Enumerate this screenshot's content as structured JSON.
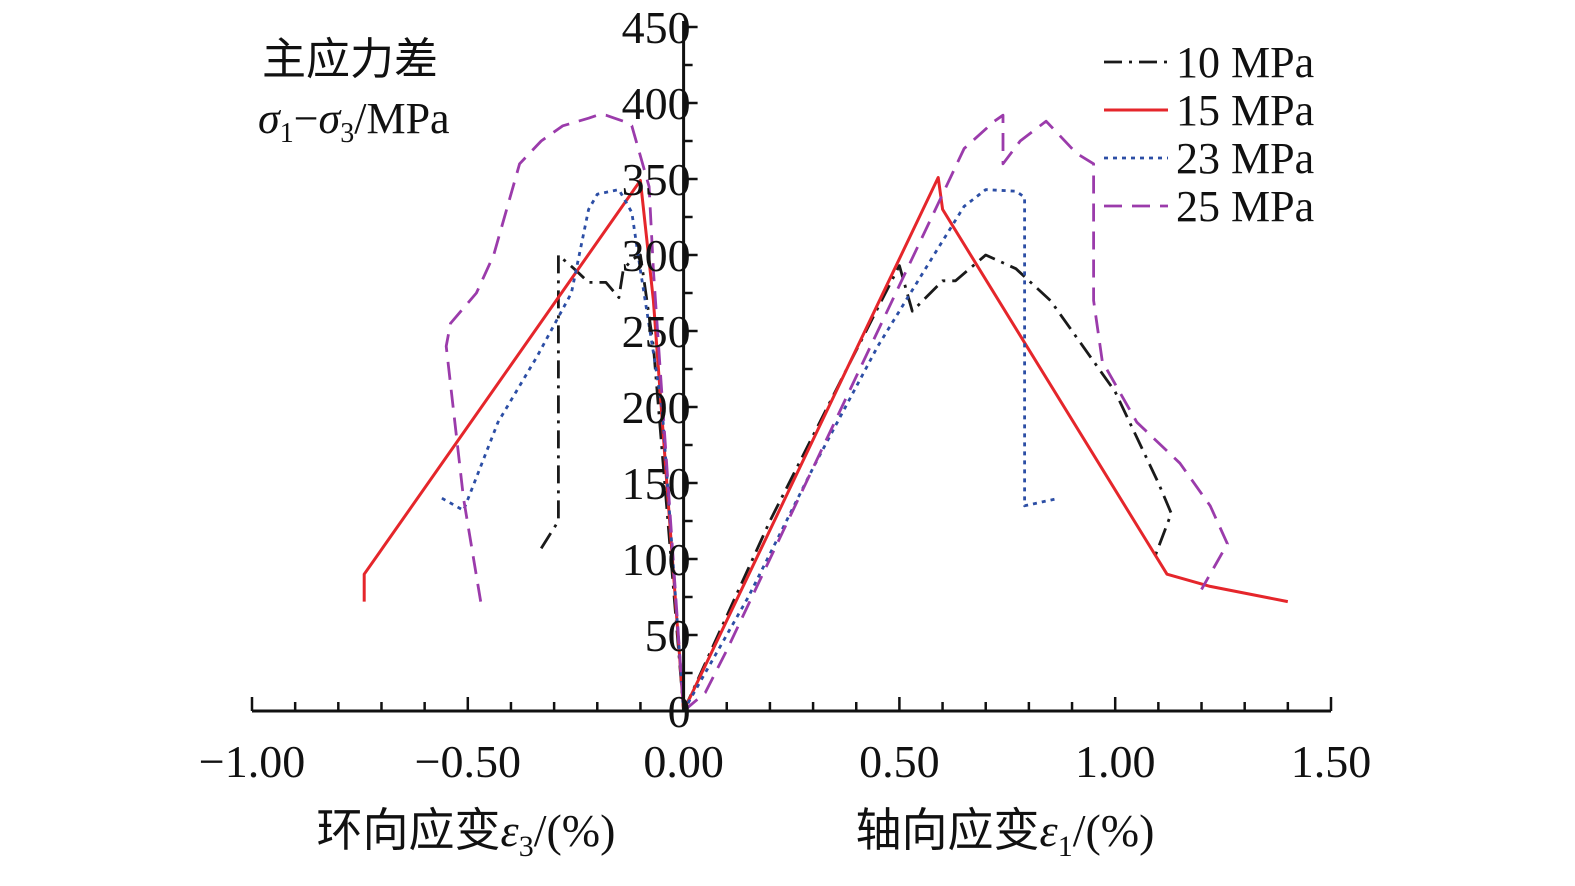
{
  "chart_data": {
    "type": "line",
    "y_title_line1": "主应力差",
    "y_title_sigma1": "σ",
    "y_title_sub1": "1",
    "y_title_minus": "−",
    "y_title_sigma3": "σ",
    "y_title_sub3": "3",
    "y_title_unit": "/MPa",
    "x_title_left_text": "环向应变",
    "x_title_left_symbol": "ε",
    "x_title_left_sub": "3",
    "x_title_left_unit": "/(%)",
    "x_title_right_text": "轴向应变",
    "x_title_right_symbol": "ε",
    "x_title_right_sub": "1",
    "x_title_right_unit": "/(%)",
    "xlim": [
      -1.0,
      1.5
    ],
    "ylim": [
      0,
      450
    ],
    "x_ticks": [
      "−1.00",
      "−0.50",
      "0.00",
      "0.50",
      "1.00",
      "1.50"
    ],
    "y_ticks": [
      "0",
      "50",
      "100",
      "150",
      "200",
      "250",
      "300",
      "350",
      "400",
      "450"
    ],
    "legend_position": "top-right",
    "series": [
      {
        "name": "10 MPa",
        "color": "#1a1a1a",
        "dash": "dashdot",
        "lateral": [
          [
            -0.33,
            107
          ],
          [
            -0.29,
            125
          ],
          [
            -0.29,
            130
          ],
          [
            -0.29,
            300
          ],
          [
            -0.25,
            290
          ],
          [
            -0.22,
            282
          ],
          [
            -0.18,
            282
          ],
          [
            -0.15,
            272
          ],
          [
            -0.14,
            290
          ],
          [
            -0.12,
            297
          ],
          [
            -0.1,
            300
          ],
          [
            -0.07,
            240
          ],
          [
            0,
            0
          ]
        ],
        "axial": [
          [
            0,
            0
          ],
          [
            0.2,
            125
          ],
          [
            0.36,
            215
          ],
          [
            0.5,
            293
          ],
          [
            0.53,
            263
          ],
          [
            0.6,
            283
          ],
          [
            0.63,
            283
          ],
          [
            0.7,
            300
          ],
          [
            0.77,
            291
          ],
          [
            0.85,
            270
          ],
          [
            1.0,
            210
          ],
          [
            1.1,
            150
          ],
          [
            1.13,
            130
          ],
          [
            1.09,
            100
          ]
        ]
      },
      {
        "name": "15 MPa",
        "color": "#e5262b",
        "dash": "solid",
        "lateral": [
          [
            -0.74,
            72
          ],
          [
            -0.74,
            90
          ],
          [
            -0.1,
            349
          ],
          [
            -0.07,
            270
          ],
          [
            0,
            0
          ]
        ],
        "axial": [
          [
            0,
            0
          ],
          [
            0.59,
            351
          ],
          [
            0.6,
            330
          ],
          [
            1.12,
            90
          ],
          [
            1.22,
            82
          ],
          [
            1.4,
            72
          ]
        ]
      },
      {
        "name": "23 MPa",
        "color": "#2c4ea5",
        "dash": "dotted",
        "lateral": [
          [
            -0.56,
            140
          ],
          [
            -0.51,
            132
          ],
          [
            -0.43,
            190
          ],
          [
            -0.34,
            233
          ],
          [
            -0.26,
            275
          ],
          [
            -0.22,
            330
          ],
          [
            -0.2,
            340
          ],
          [
            -0.15,
            343
          ],
          [
            -0.12,
            328
          ],
          [
            -0.1,
            290
          ],
          [
            -0.05,
            200
          ],
          [
            0,
            0
          ]
        ],
        "axial": [
          [
            0,
            0
          ],
          [
            0.15,
            75
          ],
          [
            0.3,
            160
          ],
          [
            0.45,
            240
          ],
          [
            0.58,
            300
          ],
          [
            0.65,
            332
          ],
          [
            0.7,
            343
          ],
          [
            0.77,
            342
          ],
          [
            0.79,
            338
          ],
          [
            0.79,
            135
          ],
          [
            0.87,
            140
          ]
        ]
      },
      {
        "name": "25 MPa",
        "color": "#9b3bab",
        "dash": "dashed",
        "lateral": [
          [
            -0.47,
            72
          ],
          [
            -0.51,
            140
          ],
          [
            -0.55,
            240
          ],
          [
            -0.54,
            255
          ],
          [
            -0.48,
            275
          ],
          [
            -0.44,
            300
          ],
          [
            -0.38,
            360
          ],
          [
            -0.33,
            375
          ],
          [
            -0.28,
            385
          ],
          [
            -0.22,
            390
          ],
          [
            -0.2,
            392
          ],
          [
            -0.18,
            392
          ],
          [
            -0.16,
            390
          ],
          [
            -0.14,
            388
          ],
          [
            -0.12,
            385
          ],
          [
            -0.08,
            345
          ],
          [
            -0.07,
            290
          ],
          [
            0,
            0
          ]
        ],
        "axial": [
          [
            0,
            0
          ],
          [
            0.05,
            12
          ],
          [
            0.1,
            40
          ],
          [
            0.2,
            100
          ],
          [
            0.3,
            160
          ],
          [
            0.4,
            220
          ],
          [
            0.5,
            280
          ],
          [
            0.6,
            340
          ],
          [
            0.65,
            370
          ],
          [
            0.72,
            388
          ],
          [
            0.74,
            392
          ],
          [
            0.74,
            360
          ],
          [
            0.78,
            375
          ],
          [
            0.84,
            388
          ],
          [
            0.91,
            367
          ],
          [
            0.95,
            360
          ],
          [
            0.95,
            270
          ],
          [
            0.97,
            230
          ],
          [
            1.05,
            190
          ],
          [
            1.15,
            163
          ],
          [
            1.22,
            135
          ],
          [
            1.26,
            110
          ],
          [
            1.2,
            80
          ]
        ]
      }
    ]
  }
}
